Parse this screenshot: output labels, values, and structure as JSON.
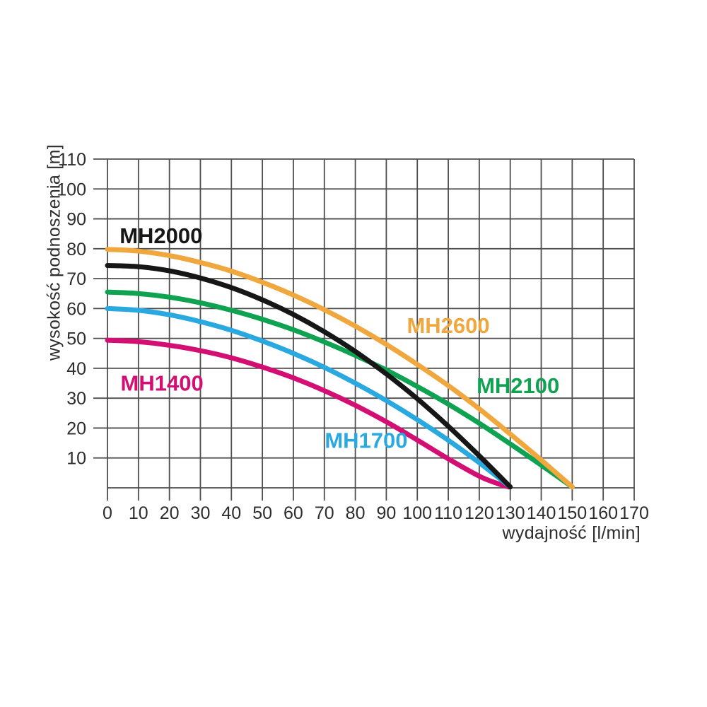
{
  "page": {
    "background": "#ffffff",
    "description": "pump performance curves chart"
  },
  "chart_data": {
    "type": "line",
    "title": "",
    "xlabel": "wydajność [l/min]",
    "ylabel": "wysokość podnoszenia [m]",
    "xlim": [
      0,
      170
    ],
    "ylim": [
      0,
      110
    ],
    "x_ticks": [
      0,
      10,
      20,
      30,
      40,
      50,
      60,
      70,
      80,
      90,
      100,
      110,
      120,
      130,
      140,
      150,
      160,
      170
    ],
    "y_ticks": [
      10,
      20,
      30,
      40,
      50,
      60,
      70,
      80,
      90,
      100,
      110
    ],
    "grid": true,
    "grid_color": "#4e4e4e",
    "axis_text_color": "#2d2d2d",
    "legend_position": "inline-labels",
    "series": [
      {
        "name": "MH1400",
        "color": "#d40f73",
        "label_pos": [
          17.6,
          35.2
        ],
        "points": [
          [
            0,
            49.4
          ],
          [
            10,
            48.9
          ],
          [
            20,
            47.7
          ],
          [
            30,
            45.9
          ],
          [
            40,
            43.5
          ],
          [
            50,
            40.4
          ],
          [
            60,
            36.8
          ],
          [
            70,
            32.5
          ],
          [
            80,
            27.6
          ],
          [
            90,
            22.1
          ],
          [
            100,
            16.0
          ],
          [
            110,
            9.7
          ],
          [
            120,
            3.9
          ],
          [
            126,
            1.4
          ],
          [
            129.5,
            0.3
          ]
        ]
      },
      {
        "name": "MH1700",
        "color": "#2aa9e1",
        "label_pos": [
          83.5,
          16.0
        ],
        "points": [
          [
            0,
            60.0
          ],
          [
            10,
            59.4
          ],
          [
            20,
            57.9
          ],
          [
            30,
            55.6
          ],
          [
            40,
            52.7
          ],
          [
            50,
            49.1
          ],
          [
            60,
            45.0
          ],
          [
            70,
            40.3
          ],
          [
            80,
            35.0
          ],
          [
            90,
            29.2
          ],
          [
            100,
            22.8
          ],
          [
            110,
            15.9
          ],
          [
            120,
            8.4
          ],
          [
            130,
            0.3
          ]
        ]
      },
      {
        "name": "MH2100",
        "color": "#0fa251",
        "label_pos": [
          132.5,
          34.3
        ],
        "points": [
          [
            0,
            65.5
          ],
          [
            10,
            65.0
          ],
          [
            20,
            63.8
          ],
          [
            30,
            61.9
          ],
          [
            40,
            59.4
          ],
          [
            50,
            56.4
          ],
          [
            60,
            52.9
          ],
          [
            70,
            48.8
          ],
          [
            80,
            44.3
          ],
          [
            90,
            39.4
          ],
          [
            100,
            33.9
          ],
          [
            110,
            28.0
          ],
          [
            120,
            21.6
          ],
          [
            130,
            14.7
          ],
          [
            140,
            7.6
          ],
          [
            150,
            0.3
          ]
        ]
      },
      {
        "name": "MH2000",
        "color": "#161616",
        "label_pos": [
          17.3,
          84.5
        ],
        "points": [
          [
            0,
            74.4
          ],
          [
            10,
            74.0
          ],
          [
            20,
            72.6
          ],
          [
            30,
            70.2
          ],
          [
            40,
            67.0
          ],
          [
            50,
            62.9
          ],
          [
            60,
            58.0
          ],
          [
            70,
            52.2
          ],
          [
            80,
            45.6
          ],
          [
            90,
            38.1
          ],
          [
            100,
            29.8
          ],
          [
            110,
            20.6
          ],
          [
            120,
            10.7
          ],
          [
            130,
            0.3
          ]
        ]
      },
      {
        "name": "MH2600",
        "color": "#f0a73d",
        "label_pos": [
          110.0,
          54.4
        ],
        "points": [
          [
            0,
            79.8
          ],
          [
            10,
            79.2
          ],
          [
            20,
            77.7
          ],
          [
            30,
            75.4
          ],
          [
            40,
            72.5
          ],
          [
            50,
            68.8
          ],
          [
            60,
            64.5
          ],
          [
            70,
            59.6
          ],
          [
            80,
            54.1
          ],
          [
            90,
            48.0
          ],
          [
            100,
            41.3
          ],
          [
            110,
            34.2
          ],
          [
            120,
            26.4
          ],
          [
            130,
            18.0
          ],
          [
            140,
            9.3
          ],
          [
            150,
            0.3
          ]
        ]
      }
    ],
    "style": {
      "curve_width": 7,
      "grid_width": 1.8,
      "tick_font_size": 25,
      "series_label_font_size": 31,
      "x_tick_overhang": 18,
      "y_tick_overhang": 20
    }
  }
}
